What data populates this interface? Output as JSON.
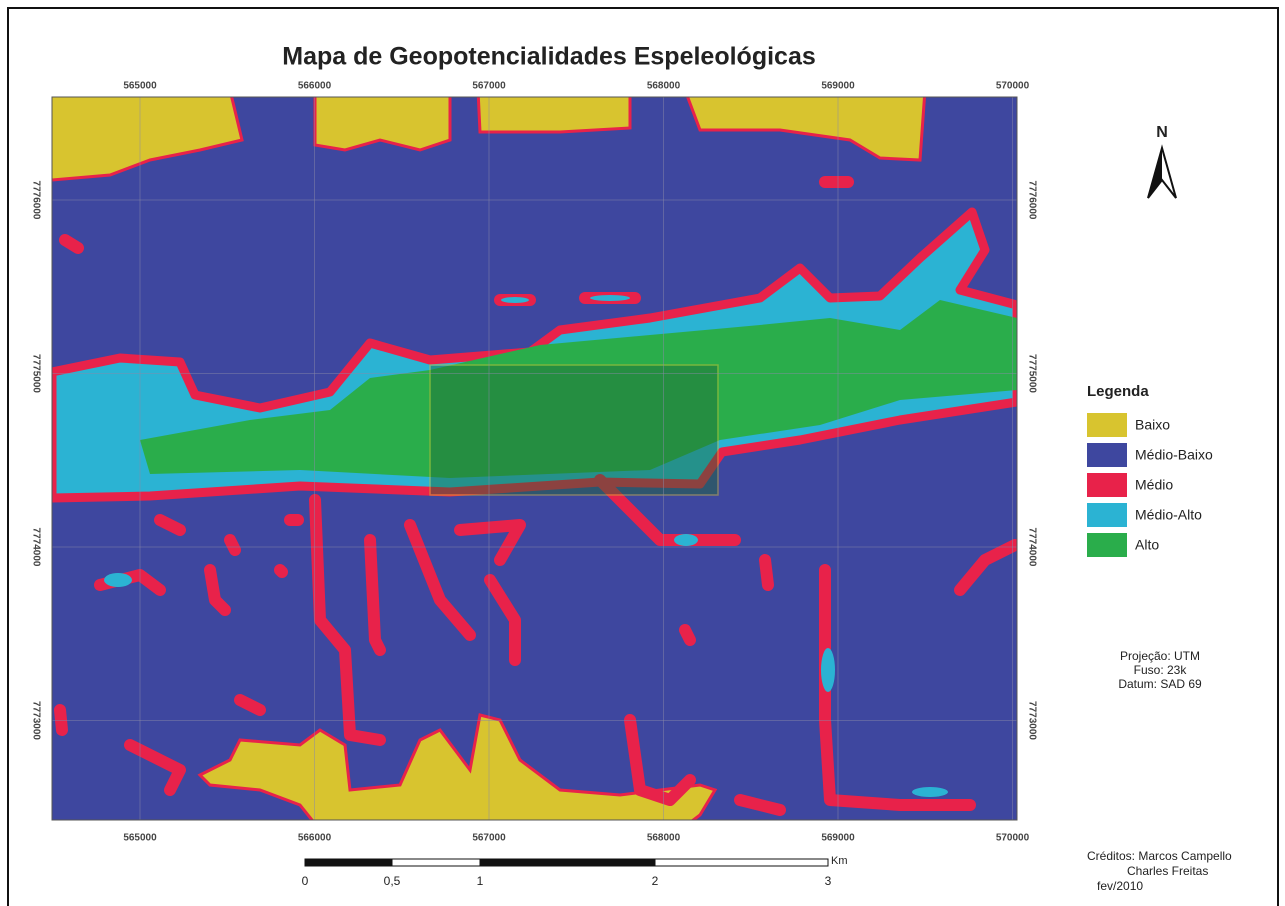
{
  "title": "Mapa de Geopotencialidades Espeleológicas",
  "map": {
    "x_labels": [
      "565000",
      "566000",
      "567000",
      "568000",
      "569000",
      "570000"
    ],
    "y_labels": [
      "7776000",
      "7775000",
      "7774000",
      "7773000"
    ]
  },
  "north": "N",
  "legend": {
    "title": "Legenda",
    "items": [
      {
        "label": "Baixo",
        "color": "#d8c42f"
      },
      {
        "label": "Médio-Baixo",
        "color": "#3e479f"
      },
      {
        "label": "Médio",
        "color": "#e8224a"
      },
      {
        "label": "Médio-Alto",
        "color": "#2bb3d3"
      },
      {
        "label": "Alto",
        "color": "#2aad4b"
      }
    ]
  },
  "projection": [
    "Projeção: UTM",
    "Fuso: 23k",
    "Datum: SAD 69"
  ],
  "scale_bar": {
    "labels": [
      "0",
      "0,5",
      "1",
      "2",
      "3"
    ],
    "unit": "Km"
  },
  "credits": [
    "Créditos: Marcos Campello",
    "Charles Freitas",
    "fev/2010"
  ]
}
